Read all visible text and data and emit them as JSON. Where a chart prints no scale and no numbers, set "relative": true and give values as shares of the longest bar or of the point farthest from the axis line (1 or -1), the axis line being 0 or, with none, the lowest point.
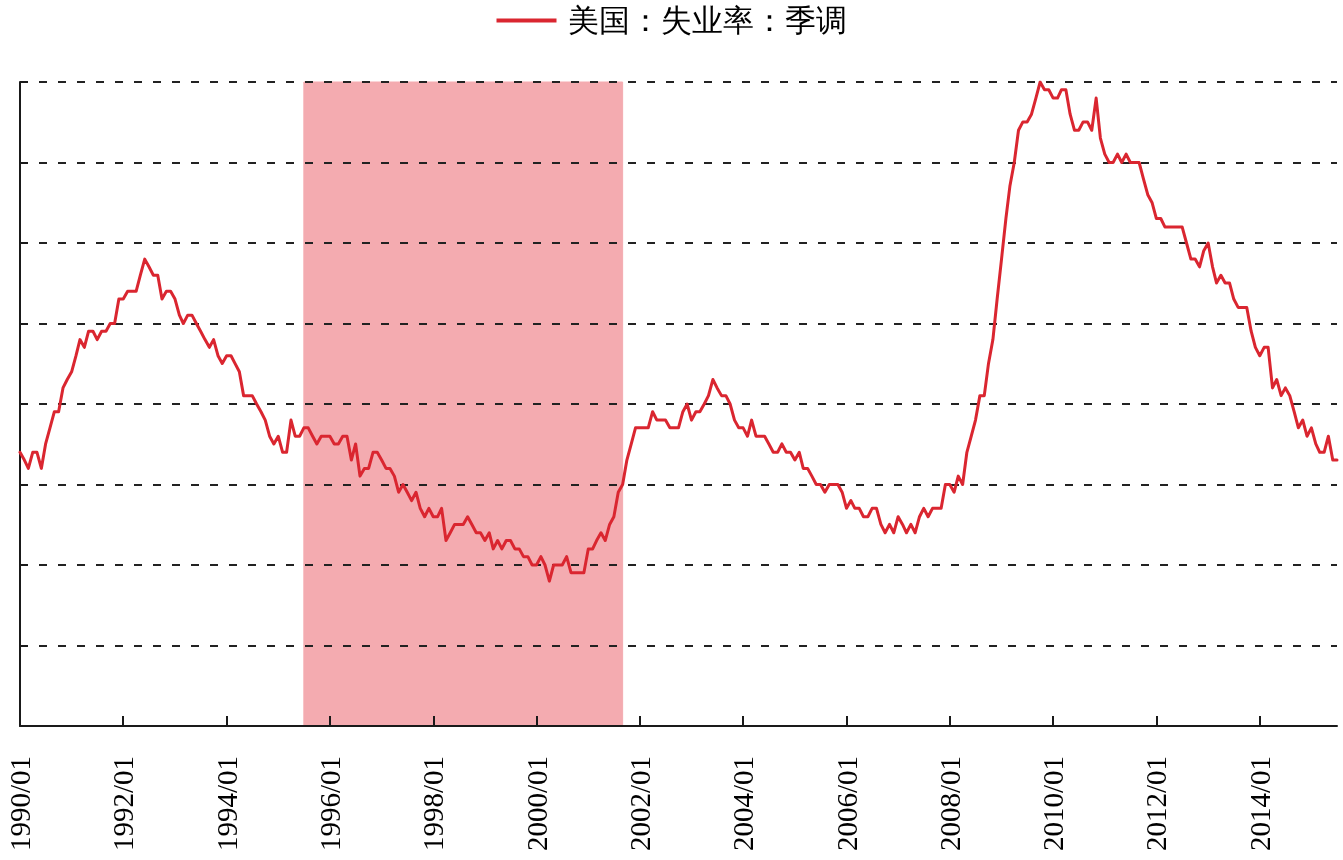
{
  "chart_data": {
    "type": "line",
    "relative": true,
    "x": [
      "1990-01",
      "1990-02",
      "1990-03",
      "1990-04",
      "1990-05",
      "1990-06",
      "1990-07",
      "1990-08",
      "1990-09",
      "1990-10",
      "1990-11",
      "1990-12",
      "1991-01",
      "1991-02",
      "1991-03",
      "1991-04",
      "1991-05",
      "1991-06",
      "1991-07",
      "1991-08",
      "1991-09",
      "1991-10",
      "1991-11",
      "1991-12",
      "1992-01",
      "1992-02",
      "1992-03",
      "1992-04",
      "1992-05",
      "1992-06",
      "1992-07",
      "1992-08",
      "1992-09",
      "1992-10",
      "1992-11",
      "1992-12",
      "1993-01",
      "1993-02",
      "1993-03",
      "1993-04",
      "1993-05",
      "1993-06",
      "1993-07",
      "1993-08",
      "1993-09",
      "1993-10",
      "1993-11",
      "1993-12",
      "1994-01",
      "1994-02",
      "1994-03",
      "1994-04",
      "1994-05",
      "1994-06",
      "1994-07",
      "1994-08",
      "1994-09",
      "1994-10",
      "1994-11",
      "1994-12",
      "1995-01",
      "1995-02",
      "1995-03",
      "1995-04",
      "1995-05",
      "1995-06",
      "1995-07",
      "1995-08",
      "1995-09",
      "1995-10",
      "1995-11",
      "1995-12",
      "1996-01",
      "1996-02",
      "1996-03",
      "1996-04",
      "1996-05",
      "1996-06",
      "1996-07",
      "1996-08",
      "1996-09",
      "1996-10",
      "1996-11",
      "1996-12",
      "1997-01",
      "1997-02",
      "1997-03",
      "1997-04",
      "1997-05",
      "1997-06",
      "1997-07",
      "1997-08",
      "1997-09",
      "1997-10",
      "1997-11",
      "1997-12",
      "1998-01",
      "1998-02",
      "1998-03",
      "1998-04",
      "1998-05",
      "1998-06",
      "1998-07",
      "1998-08",
      "1998-09",
      "1998-10",
      "1998-11",
      "1998-12",
      "1999-01",
      "1999-02",
      "1999-03",
      "1999-04",
      "1999-05",
      "1999-06",
      "1999-07",
      "1999-08",
      "1999-09",
      "1999-10",
      "1999-11",
      "1999-12",
      "2000-01",
      "2000-02",
      "2000-03",
      "2000-04",
      "2000-05",
      "2000-06",
      "2000-07",
      "2000-08",
      "2000-09",
      "2000-10",
      "2000-11",
      "2000-12",
      "2001-01",
      "2001-02",
      "2001-03",
      "2001-04",
      "2001-05",
      "2001-06",
      "2001-07",
      "2001-08",
      "2001-09",
      "2001-10",
      "2001-11",
      "2001-12",
      "2002-01",
      "2002-02",
      "2002-03",
      "2002-04",
      "2002-05",
      "2002-06",
      "2002-07",
      "2002-08",
      "2002-09",
      "2002-10",
      "2002-11",
      "2002-12",
      "2003-01",
      "2003-02",
      "2003-03",
      "2003-04",
      "2003-05",
      "2003-06",
      "2003-07",
      "2003-08",
      "2003-09",
      "2003-10",
      "2003-11",
      "2003-12",
      "2004-01",
      "2004-02",
      "2004-03",
      "2004-04",
      "2004-05",
      "2004-06",
      "2004-07",
      "2004-08",
      "2004-09",
      "2004-10",
      "2004-11",
      "2004-12",
      "2005-01",
      "2005-02",
      "2005-03",
      "2005-04",
      "2005-05",
      "2005-06",
      "2005-07",
      "2005-08",
      "2005-09",
      "2005-10",
      "2005-11",
      "2005-12",
      "2006-01",
      "2006-02",
      "2006-03",
      "2006-04",
      "2006-05",
      "2006-06",
      "2006-07",
      "2006-08",
      "2006-09",
      "2006-10",
      "2006-11",
      "2006-12",
      "2007-01",
      "2007-02",
      "2007-03",
      "2007-04",
      "2007-05",
      "2007-06",
      "2007-07",
      "2007-08",
      "2007-09",
      "2007-10",
      "2007-11",
      "2007-12",
      "2008-01",
      "2008-02",
      "2008-03",
      "2008-04",
      "2008-05",
      "2008-06",
      "2008-07",
      "2008-08",
      "2008-09",
      "2008-10",
      "2008-11",
      "2008-12",
      "2009-01",
      "2009-02",
      "2009-03",
      "2009-04",
      "2009-05",
      "2009-06",
      "2009-07",
      "2009-08",
      "2009-09",
      "2009-10",
      "2009-11",
      "2009-12",
      "2010-01",
      "2010-02",
      "2010-03",
      "2010-04",
      "2010-05",
      "2010-06",
      "2010-07",
      "2010-08",
      "2010-09",
      "2010-10",
      "2010-11",
      "2010-12",
      "2011-01",
      "2011-02",
      "2011-03",
      "2011-04",
      "2011-05",
      "2011-06",
      "2011-07",
      "2011-08",
      "2011-09",
      "2011-10",
      "2011-11",
      "2011-12",
      "2012-01",
      "2012-02",
      "2012-03",
      "2012-04",
      "2012-05",
      "2012-06",
      "2012-07",
      "2012-08",
      "2012-09",
      "2012-10",
      "2012-11",
      "2012-12",
      "2013-01",
      "2013-02",
      "2013-03",
      "2013-04",
      "2013-05",
      "2013-06",
      "2013-07",
      "2013-08",
      "2013-09",
      "2013-10",
      "2013-11",
      "2013-12",
      "2014-01",
      "2014-02",
      "2014-03",
      "2014-04",
      "2014-05",
      "2014-06",
      "2014-07",
      "2014-08",
      "2014-09",
      "2014-10",
      "2014-11",
      "2014-12",
      "2015-01",
      "2015-02",
      "2015-03",
      "2015-04",
      "2015-05",
      "2015-06",
      "2015-07"
    ],
    "series": [
      {
        "name": "美国：失业率：季调",
        "color": "#da2630",
        "values": [
          0.425,
          0.413,
          0.4,
          0.425,
          0.425,
          0.4,
          0.438,
          0.463,
          0.488,
          0.488,
          0.525,
          0.538,
          0.55,
          0.575,
          0.6,
          0.588,
          0.613,
          0.613,
          0.6,
          0.613,
          0.613,
          0.625,
          0.625,
          0.663,
          0.663,
          0.675,
          0.675,
          0.675,
          0.7,
          0.725,
          0.713,
          0.7,
          0.7,
          0.663,
          0.675,
          0.675,
          0.663,
          0.638,
          0.625,
          0.638,
          0.638,
          0.625,
          0.613,
          0.6,
          0.588,
          0.6,
          0.575,
          0.563,
          0.575,
          0.575,
          0.563,
          0.55,
          0.513,
          0.513,
          0.513,
          0.5,
          0.488,
          0.475,
          0.45,
          0.438,
          0.45,
          0.425,
          0.425,
          0.475,
          0.45,
          0.45,
          0.463,
          0.463,
          0.45,
          0.438,
          0.45,
          0.45,
          0.45,
          0.438,
          0.438,
          0.45,
          0.45,
          0.413,
          0.438,
          0.388,
          0.4,
          0.4,
          0.425,
          0.425,
          0.413,
          0.4,
          0.4,
          0.388,
          0.363,
          0.375,
          0.363,
          0.35,
          0.363,
          0.338,
          0.325,
          0.338,
          0.325,
          0.325,
          0.338,
          0.288,
          0.3,
          0.313,
          0.313,
          0.313,
          0.325,
          0.313,
          0.3,
          0.3,
          0.288,
          0.3,
          0.275,
          0.288,
          0.275,
          0.288,
          0.288,
          0.275,
          0.275,
          0.263,
          0.263,
          0.25,
          0.25,
          0.263,
          0.25,
          0.225,
          0.25,
          0.25,
          0.25,
          0.263,
          0.238,
          0.238,
          0.238,
          0.238,
          0.275,
          0.275,
          0.288,
          0.3,
          0.288,
          0.313,
          0.325,
          0.363,
          0.375,
          0.413,
          0.438,
          0.463,
          0.463,
          0.463,
          0.463,
          0.488,
          0.475,
          0.475,
          0.475,
          0.463,
          0.463,
          0.463,
          0.488,
          0.5,
          0.475,
          0.488,
          0.488,
          0.5,
          0.513,
          0.538,
          0.525,
          0.513,
          0.513,
          0.5,
          0.475,
          0.463,
          0.463,
          0.45,
          0.475,
          0.45,
          0.45,
          0.45,
          0.438,
          0.425,
          0.425,
          0.438,
          0.425,
          0.425,
          0.413,
          0.425,
          0.4,
          0.4,
          0.388,
          0.375,
          0.375,
          0.363,
          0.375,
          0.375,
          0.375,
          0.363,
          0.338,
          0.35,
          0.338,
          0.338,
          0.325,
          0.325,
          0.338,
          0.338,
          0.313,
          0.3,
          0.313,
          0.3,
          0.325,
          0.313,
          0.3,
          0.313,
          0.3,
          0.325,
          0.338,
          0.325,
          0.338,
          0.338,
          0.338,
          0.375,
          0.375,
          0.363,
          0.388,
          0.375,
          0.425,
          0.45,
          0.475,
          0.513,
          0.513,
          0.563,
          0.6,
          0.663,
          0.725,
          0.788,
          0.838,
          0.875,
          0.925,
          0.938,
          0.938,
          0.95,
          0.975,
          1,
          0.988,
          0.988,
          0.975,
          0.975,
          0.988,
          0.988,
          0.95,
          0.925,
          0.925,
          0.938,
          0.938,
          0.925,
          0.975,
          0.913,
          0.888,
          0.875,
          0.875,
          0.888,
          0.875,
          0.888,
          0.875,
          0.875,
          0.875,
          0.85,
          0.825,
          0.813,
          0.788,
          0.788,
          0.775,
          0.775,
          0.775,
          0.775,
          0.775,
          0.75,
          0.725,
          0.725,
          0.713,
          0.738,
          0.75,
          0.713,
          0.688,
          0.7,
          0.688,
          0.688,
          0.663,
          0.65,
          0.65,
          0.65,
          0.613,
          0.588,
          0.575,
          0.588,
          0.588,
          0.525,
          0.538,
          0.513,
          0.525,
          0.513,
          0.488,
          0.463,
          0.475,
          0.45,
          0.463,
          0.438,
          0.425,
          0.425,
          0.45,
          0.413,
          0.413
        ]
      }
    ],
    "xlim": [
      "1990-01",
      "2015-07"
    ],
    "xticks": [
      {
        "value": "1990-01",
        "label": "1990/01"
      },
      {
        "value": "1992-01",
        "label": "1992/01"
      },
      {
        "value": "1994-01",
        "label": "1994/01"
      },
      {
        "value": "1996-01",
        "label": "1996/01"
      },
      {
        "value": "1998-01",
        "label": "1998/01"
      },
      {
        "value": "2000-01",
        "label": "2000/01"
      },
      {
        "value": "2002-01",
        "label": "2002/01"
      },
      {
        "value": "2004-01",
        "label": "2004/01"
      },
      {
        "value": "2006-01",
        "label": "2006/01"
      },
      {
        "value": "2008-01",
        "label": "2008/01"
      },
      {
        "value": "2010-01",
        "label": "2010/01"
      },
      {
        "value": "2012-01",
        "label": "2012/01"
      },
      {
        "value": "2014-01",
        "label": "2014/01"
      }
    ],
    "bands": [
      {
        "axis": "x",
        "from": "1995-07",
        "to": "2001-09",
        "color": "#f4abb0"
      }
    ],
    "grid": "y",
    "legend": "top"
  }
}
